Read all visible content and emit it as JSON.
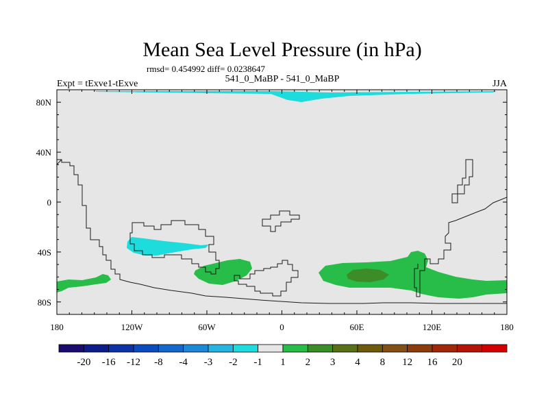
{
  "chart_data": {
    "type": "heatmap",
    "title": "Mean Sea Level Pressure (in hPa)",
    "stats": "rmsd= 0.454992 diff= 0.0238647",
    "left_label": "Expt = tExve1-tExve",
    "center_label": "541_0_MaBP - 541_0_MaBP",
    "right_label": "JJA",
    "x_range": [
      -180,
      180
    ],
    "y_range": [
      -90,
      90
    ],
    "x_ticks": [
      {
        "value": -180,
        "label": "180"
      },
      {
        "value": -120,
        "label": "120W"
      },
      {
        "value": -60,
        "label": "60W"
      },
      {
        "value": 0,
        "label": "0"
      },
      {
        "value": 60,
        "label": "60E"
      },
      {
        "value": 120,
        "label": "120E"
      },
      {
        "value": 180,
        "label": "180"
      }
    ],
    "y_ticks": [
      {
        "value": 80,
        "label": "80N"
      },
      {
        "value": 40,
        "label": "40N"
      },
      {
        "value": 0,
        "label": "0"
      },
      {
        "value": -40,
        "label": "40S"
      },
      {
        "value": -80,
        "label": "80S"
      }
    ],
    "colorbar": {
      "colors": [
        "#1a0c6e",
        "#0c1c8a",
        "#0c32a6",
        "#0a4cbe",
        "#1468cc",
        "#1e88d6",
        "#28b4e0",
        "#1edcdc",
        "#e6e6e6",
        "#28bc48",
        "#3c8c28",
        "#5a7016",
        "#6e5a0a",
        "#825014",
        "#8c3c0a",
        "#a02808",
        "#b41406",
        "#d20000"
      ],
      "labels": [
        "-20",
        "-16",
        "-12",
        "-8",
        "-4",
        "-3",
        "-2",
        "-1",
        "1",
        "2",
        "3",
        "4",
        "8",
        "12",
        "16",
        "20"
      ]
    },
    "background_color": "#e6e6e6"
  }
}
